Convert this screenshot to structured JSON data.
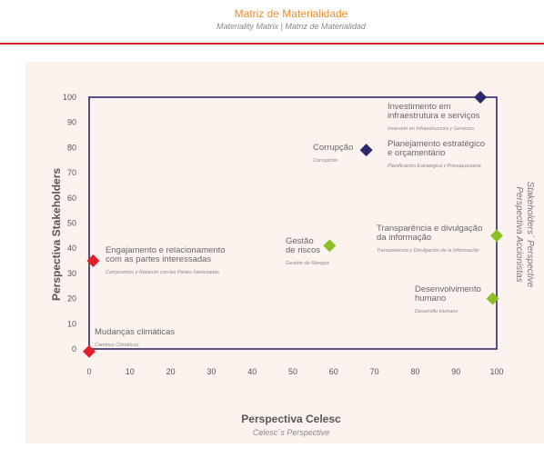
{
  "header": {
    "title": "Matriz de Materialidade",
    "subtitle": "Materiality Matrix  |  Matriz de Materialidad"
  },
  "colors": {
    "accent_title": "#f08c2a",
    "rule": "#d62027",
    "panel_bg": "#fdf3ee",
    "navy": "#2b2a6b",
    "green": "#8cbf26",
    "red": "#e2202b"
  },
  "chart_data": {
    "type": "scatter",
    "xlabel": "Perspectiva Celesc",
    "xlabel_sub": "Celesc´s Perspective",
    "ylabel": "Perspectiva Stakeholders",
    "right_label_1": "Stakeholders´ Perspective",
    "right_label_2": "Perspectiva Accionistas",
    "xlim": [
      0,
      100
    ],
    "ylim": [
      0,
      100
    ],
    "xticks": [
      "0",
      "10",
      "20",
      "30",
      "40",
      "50",
      "60",
      "70",
      "80",
      "90",
      "100"
    ],
    "yticks": [
      "0",
      "10",
      "20",
      "30",
      "40",
      "50",
      "60",
      "70",
      "80",
      "90",
      "100"
    ],
    "points": [
      {
        "label": "Investimento em\ninfraestrutura e serviços",
        "sub": "Inversión en Infraestructura y Servicios",
        "x": 96,
        "y": 100,
        "color": "navy"
      },
      {
        "label": "Corrupção",
        "sub": "Corrupción",
        "x": 68,
        "y": 79,
        "color": "navy"
      },
      {
        "label": "Planejamento estratégico\ne orçamentário",
        "sub": "Planificación Estratégica y Presupuestaria",
        "x": 96,
        "y": 100,
        "color": "navy",
        "hidden_marker": true
      },
      {
        "label": "Gestão\nde riscos",
        "sub": "Gestión de Riesgos",
        "x": 59,
        "y": 41,
        "color": "green"
      },
      {
        "label": "Transparência e divulgação\nda informação",
        "sub": "Transparencia y Divulgación de la Información",
        "x": 100,
        "y": 45,
        "color": "green"
      },
      {
        "label": "Desenvolvimento\nhumano",
        "sub": "Desarrollo Humano",
        "x": 99,
        "y": 20,
        "color": "green"
      },
      {
        "label": "Engajamento e relacionamento\ncom as partes interessadas",
        "sub": "Compromiso y Relación con las Partes Interesadas",
        "x": 1,
        "y": 35,
        "color": "red"
      },
      {
        "label": "Mudanças climáticas",
        "sub": "Cambios Climáticos",
        "x": 0,
        "y": -1,
        "color": "red"
      }
    ]
  }
}
